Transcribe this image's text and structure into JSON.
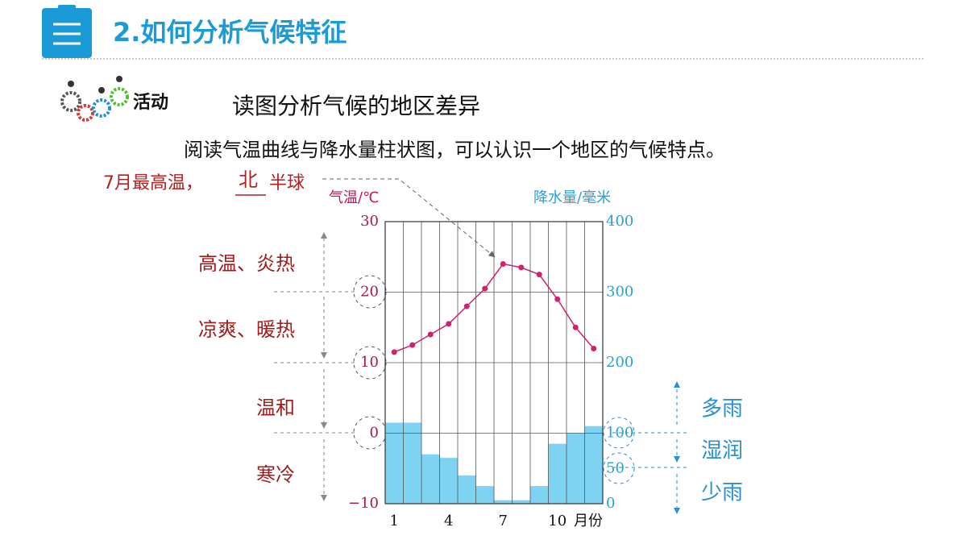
{
  "header": {
    "title": "2.如何分析气候特征"
  },
  "activity": {
    "label": "活动",
    "title": "读图分析气候的地区差异",
    "description": "阅读气温曲线与降水量柱状图，可以认识一个地区的气候特点。"
  },
  "annotations": {
    "hemisphere": {
      "prefix": "7月最高温，",
      "answer": "北",
      "suffix": "半球"
    },
    "temperature_zones": [
      "高温、炎热",
      "凉爽、暖热",
      "温和",
      "寒冷"
    ],
    "precipitation_zones": [
      "多雨",
      "湿润",
      "少雨"
    ]
  },
  "chart_data": {
    "type": "climate",
    "ylabel": "气温/℃",
    "y2label": "降水量/毫米",
    "xlabel": "月份",
    "categories": [
      1,
      null,
      null,
      4,
      null,
      null,
      7,
      null,
      null,
      10,
      null,
      null
    ],
    "series": [
      {
        "type": "bar",
        "axis": "y2",
        "color": "#7fd3f2",
        "values": [
          115,
          115,
          70,
          65,
          40,
          25,
          5,
          5,
          25,
          85,
          100,
          110
        ]
      },
      {
        "type": "line",
        "color": "#d0206f",
        "values": [
          11.5,
          12.5,
          14,
          15.5,
          18,
          20.5,
          24,
          23.5,
          22.5,
          19,
          15,
          12
        ]
      }
    ],
    "ylim": [
      -10,
      30
    ],
    "yticks": [
      {
        "value": -10,
        "label": "−10"
      },
      0,
      10,
      20,
      30
    ],
    "y2lim": [
      0,
      400
    ],
    "y2ticks": [
      0,
      50,
      100,
      200,
      300,
      400
    ],
    "grid": true
  }
}
